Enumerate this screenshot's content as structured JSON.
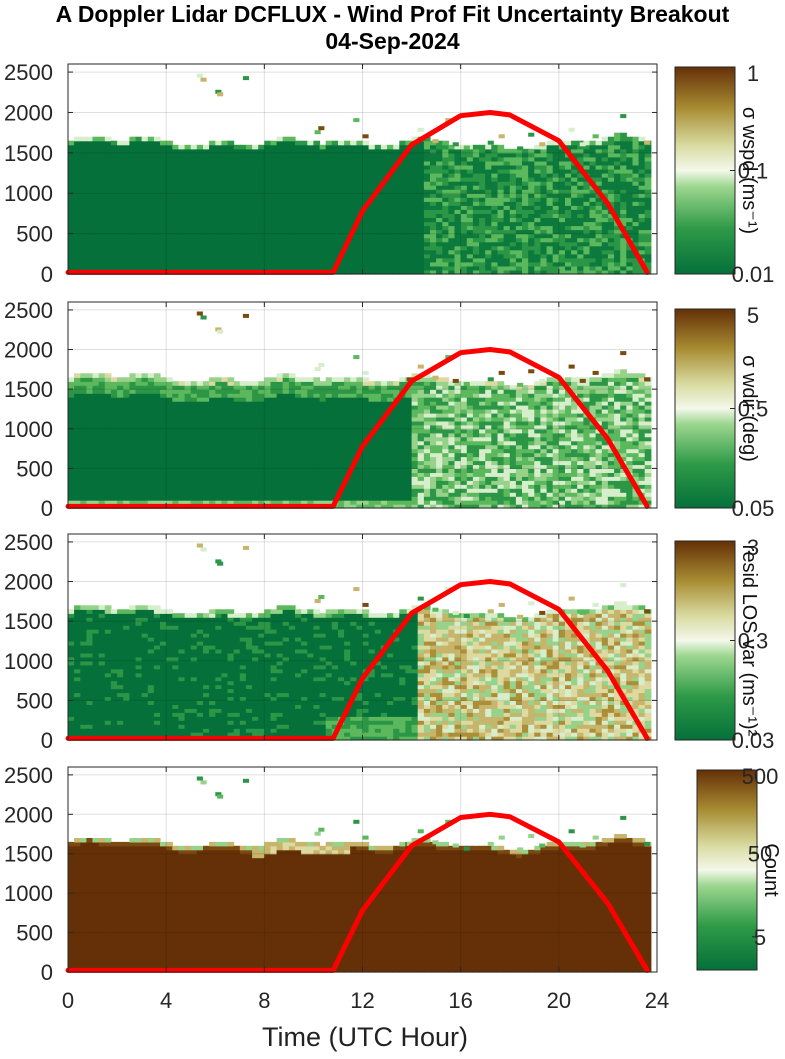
{
  "title": "A Doppler Lidar DCFLUX - Wind Prof Fit Uncertainty Breakout",
  "subtitle": "04-Sep-2024",
  "xlabel": "Time (UTC Hour)",
  "chart_data": [
    {
      "type": "heatmap",
      "x_ticks": [
        "0",
        "4",
        "8",
        "12",
        "16",
        "20",
        "24"
      ],
      "xlim": [
        0,
        24
      ],
      "y_ticks": [
        "0",
        "500",
        "1000",
        "1500",
        "2000",
        "2500"
      ],
      "ylim": [
        0,
        2600
      ],
      "grid": true,
      "colorbar_label": "σ wspd (ms⁻¹)",
      "colorbar_scale": "log",
      "colorbar_range": [
        0.01,
        1
      ],
      "colorbar_ticks": [
        "0.01",
        "0.1",
        "1"
      ],
      "series": [
        {
          "type": "line",
          "color": "#ff0000",
          "x": [
            0,
            10.8,
            12,
            14,
            16,
            17.2,
            18,
            20,
            22,
            23.6
          ],
          "y": [
            20,
            20,
            780,
            1600,
            1960,
            2000,
            1970,
            1650,
            870,
            20
          ]
        }
      ]
    },
    {
      "type": "heatmap",
      "x_ticks": [
        "0",
        "4",
        "8",
        "12",
        "16",
        "20",
        "24"
      ],
      "xlim": [
        0,
        24
      ],
      "y_ticks": [
        "0",
        "500",
        "1000",
        "1500",
        "2000",
        "2500"
      ],
      "ylim": [
        0,
        2600
      ],
      "grid": true,
      "colorbar_label": "σ wdir (deg)",
      "colorbar_scale": "log",
      "colorbar_range": [
        0.05,
        5
      ],
      "colorbar_ticks": [
        "0.05",
        "0.5",
        "5"
      ],
      "series": [
        {
          "type": "line",
          "color": "#ff0000",
          "x": [
            0,
            10.8,
            12,
            14,
            16,
            17.2,
            18,
            20,
            22,
            23.6
          ],
          "y": [
            20,
            20,
            780,
            1600,
            1960,
            2000,
            1970,
            1650,
            870,
            20
          ]
        }
      ]
    },
    {
      "type": "heatmap",
      "x_ticks": [
        "0",
        "4",
        "8",
        "12",
        "16",
        "20",
        "24"
      ],
      "xlim": [
        0,
        24
      ],
      "y_ticks": [
        "0",
        "500",
        "1000",
        "1500",
        "2000",
        "2500"
      ],
      "ylim": [
        0,
        2600
      ],
      "grid": true,
      "colorbar_label": "resid LOS var (ms⁻¹)²",
      "colorbar_scale": "log",
      "colorbar_range": [
        0.03,
        3
      ],
      "colorbar_ticks": [
        "0.03",
        "0.3",
        "3"
      ],
      "series": [
        {
          "type": "line",
          "color": "#ff0000",
          "x": [
            0,
            10.8,
            12,
            14,
            16,
            17.2,
            18,
            20,
            22,
            23.6
          ],
          "y": [
            20,
            20,
            780,
            1600,
            1960,
            2000,
            1970,
            1650,
            870,
            20
          ]
        }
      ]
    },
    {
      "type": "heatmap",
      "x_ticks": [
        "0",
        "4",
        "8",
        "12",
        "16",
        "20",
        "24"
      ],
      "xlim": [
        0,
        24
      ],
      "y_ticks": [
        "0",
        "500",
        "1000",
        "1500",
        "2000",
        "2500"
      ],
      "ylim": [
        0,
        2600
      ],
      "grid": true,
      "colorbar_label": "Count",
      "colorbar_scale": "log",
      "colorbar_range": [
        2,
        500
      ],
      "colorbar_ticks": [
        "5",
        "50",
        "500"
      ],
      "series": [
        {
          "type": "line",
          "color": "#ff0000",
          "x": [
            0,
            10.8,
            12,
            14,
            16,
            17.2,
            18,
            20,
            22,
            23.6
          ],
          "y": [
            20,
            20,
            780,
            1600,
            1960,
            2000,
            1970,
            1650,
            870,
            20
          ]
        }
      ]
    }
  ]
}
